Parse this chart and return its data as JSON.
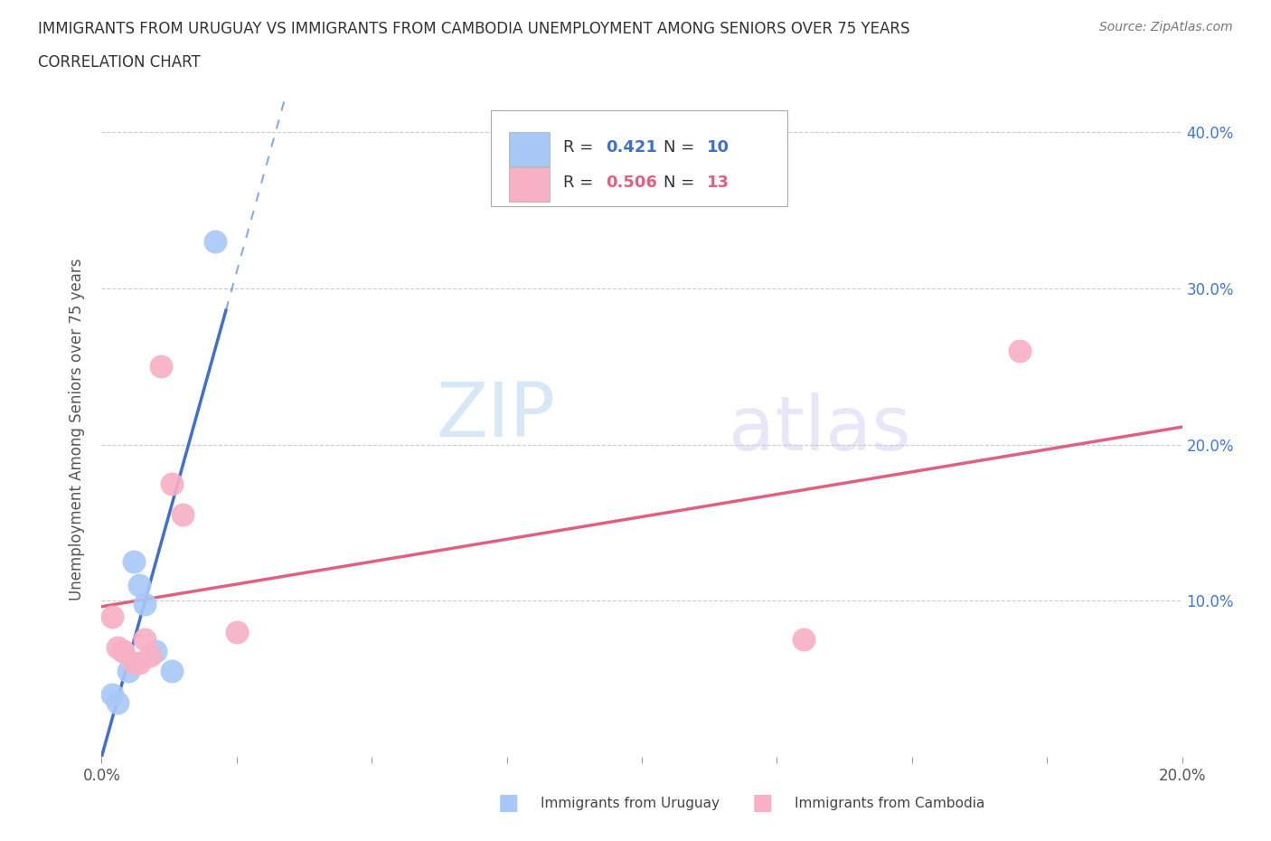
{
  "title_line1": "IMMIGRANTS FROM URUGUAY VS IMMIGRANTS FROM CAMBODIA UNEMPLOYMENT AMONG SENIORS OVER 75 YEARS",
  "title_line2": "CORRELATION CHART",
  "source": "Source: ZipAtlas.com",
  "ylabel": "Unemployment Among Seniors over 75 years",
  "xlim": [
    0.0,
    0.2
  ],
  "ylim": [
    0.0,
    0.42
  ],
  "xtick_positions": [
    0.0,
    0.025,
    0.05,
    0.075,
    0.1,
    0.125,
    0.15,
    0.175,
    0.2
  ],
  "ytick_positions": [
    0.0,
    0.1,
    0.2,
    0.3,
    0.4
  ],
  "ytick_labels_right": [
    "",
    "10.0%",
    "20.0%",
    "30.0%",
    "40.0%"
  ],
  "uruguay_color": "#a8c8f8",
  "uruguay_line_color": "#4070cc",
  "cambodia_color": "#f8b0c4",
  "cambodia_line_color": "#e06080",
  "uruguay_R": "0.421",
  "uruguay_N": "10",
  "cambodia_R": "0.506",
  "cambodia_N": "13",
  "uruguay_x": [
    0.002,
    0.003,
    0.004,
    0.005,
    0.006,
    0.007,
    0.008,
    0.01,
    0.013,
    0.021
  ],
  "uruguay_y": [
    0.04,
    0.035,
    0.068,
    0.055,
    0.125,
    0.11,
    0.098,
    0.068,
    0.055,
    0.33
  ],
  "cambodia_x": [
    0.002,
    0.003,
    0.004,
    0.006,
    0.007,
    0.008,
    0.009,
    0.011,
    0.013,
    0.015,
    0.025,
    0.13,
    0.17
  ],
  "cambodia_y": [
    0.09,
    0.07,
    0.068,
    0.06,
    0.06,
    0.075,
    0.065,
    0.25,
    0.175,
    0.155,
    0.08,
    0.075,
    0.26
  ]
}
